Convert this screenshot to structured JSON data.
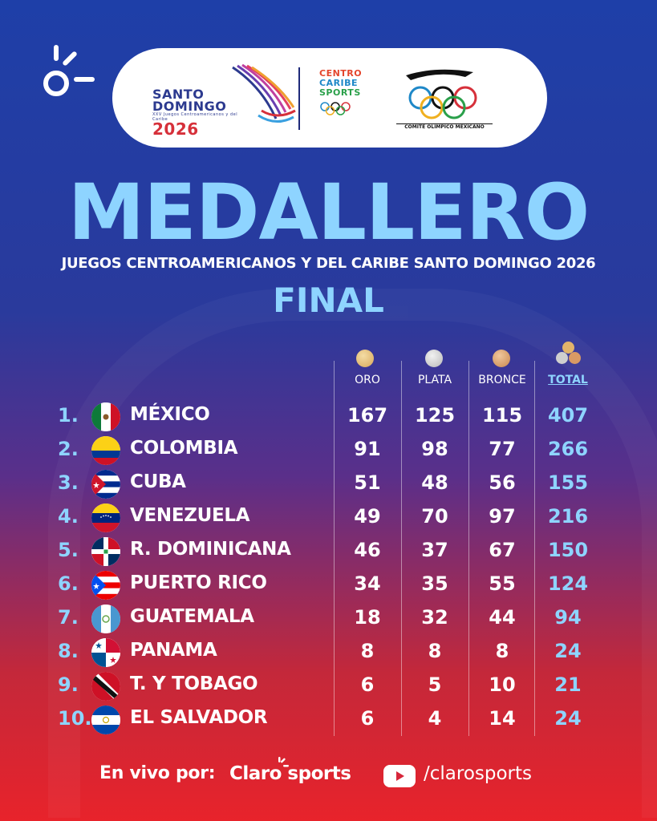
{
  "header": {
    "santo_domingo_logo": {
      "line1": "SANTO",
      "line2": "DOMINGO",
      "year": "2026",
      "subtext": "XXV Juegos Centroamericanos y del Caribe"
    },
    "centro_caribe_logo": {
      "line1": "CENTRO",
      "line2": "CARIBE",
      "line3": "SPORTS"
    },
    "olympic_committee_logo": {
      "text": "COMITE OLIMPICO MEXICANO"
    }
  },
  "title": "MEDALLERO",
  "subtitle": "JUEGOS CENTROAMERICANOS Y DEL CARIBE SANTO DOMINGO 2026",
  "status": "FINAL",
  "columns": {
    "oro": "ORO",
    "plata": "PLATA",
    "bronce": "BRONCE",
    "total": "TOTAL"
  },
  "rows": [
    {
      "rank": "1.",
      "country": "MÉXICO",
      "oro": "167",
      "plata": "125",
      "bronce": "115",
      "total": "407",
      "flag_icon": "mexico-flag-icon"
    },
    {
      "rank": "2.",
      "country": "COLOMBIA",
      "oro": "91",
      "plata": "98",
      "bronce": "77",
      "total": "266",
      "flag_icon": "colombia-flag-icon"
    },
    {
      "rank": "3.",
      "country": "CUBA",
      "oro": "51",
      "plata": "48",
      "bronce": "56",
      "total": "155",
      "flag_icon": "cuba-flag-icon"
    },
    {
      "rank": "4.",
      "country": "VENEZUELA",
      "oro": "49",
      "plata": "70",
      "bronce": "97",
      "total": "216",
      "flag_icon": "venezuela-flag-icon"
    },
    {
      "rank": "5.",
      "country": "R. DOMINICANA",
      "oro": "46",
      "plata": "37",
      "bronce": "67",
      "total": "150",
      "flag_icon": "dominican-republic-flag-icon"
    },
    {
      "rank": "6.",
      "country": "PUERTO RICO",
      "oro": "34",
      "plata": "35",
      "bronce": "55",
      "total": "124",
      "flag_icon": "puerto-rico-flag-icon"
    },
    {
      "rank": "7.",
      "country": "GUATEMALA",
      "oro": "18",
      "plata": "32",
      "bronce": "44",
      "total": "94",
      "flag_icon": "guatemala-flag-icon"
    },
    {
      "rank": "8.",
      "country": "PANAMA",
      "oro": "8",
      "plata": "8",
      "bronce": "8",
      "total": "24",
      "flag_icon": "panama-flag-icon"
    },
    {
      "rank": "9.",
      "country": "T. Y TOBAGO",
      "oro": "6",
      "plata": "5",
      "bronce": "10",
      "total": "21",
      "flag_icon": "trinidad-tobago-flag-icon"
    },
    {
      "rank": "10.",
      "country": "EL SALVADOR",
      "oro": "6",
      "plata": "4",
      "bronce": "14",
      "total": "24",
      "flag_icon": "el-salvador-flag-icon"
    }
  ],
  "footer": {
    "prefix": "En vivo por:",
    "brand": "Claro sports",
    "handle": "/clarosports"
  },
  "colors": {
    "accent_light_blue": "#8ed4ff",
    "background_top": "#1e3fa8",
    "background_bottom": "#e8232b"
  }
}
